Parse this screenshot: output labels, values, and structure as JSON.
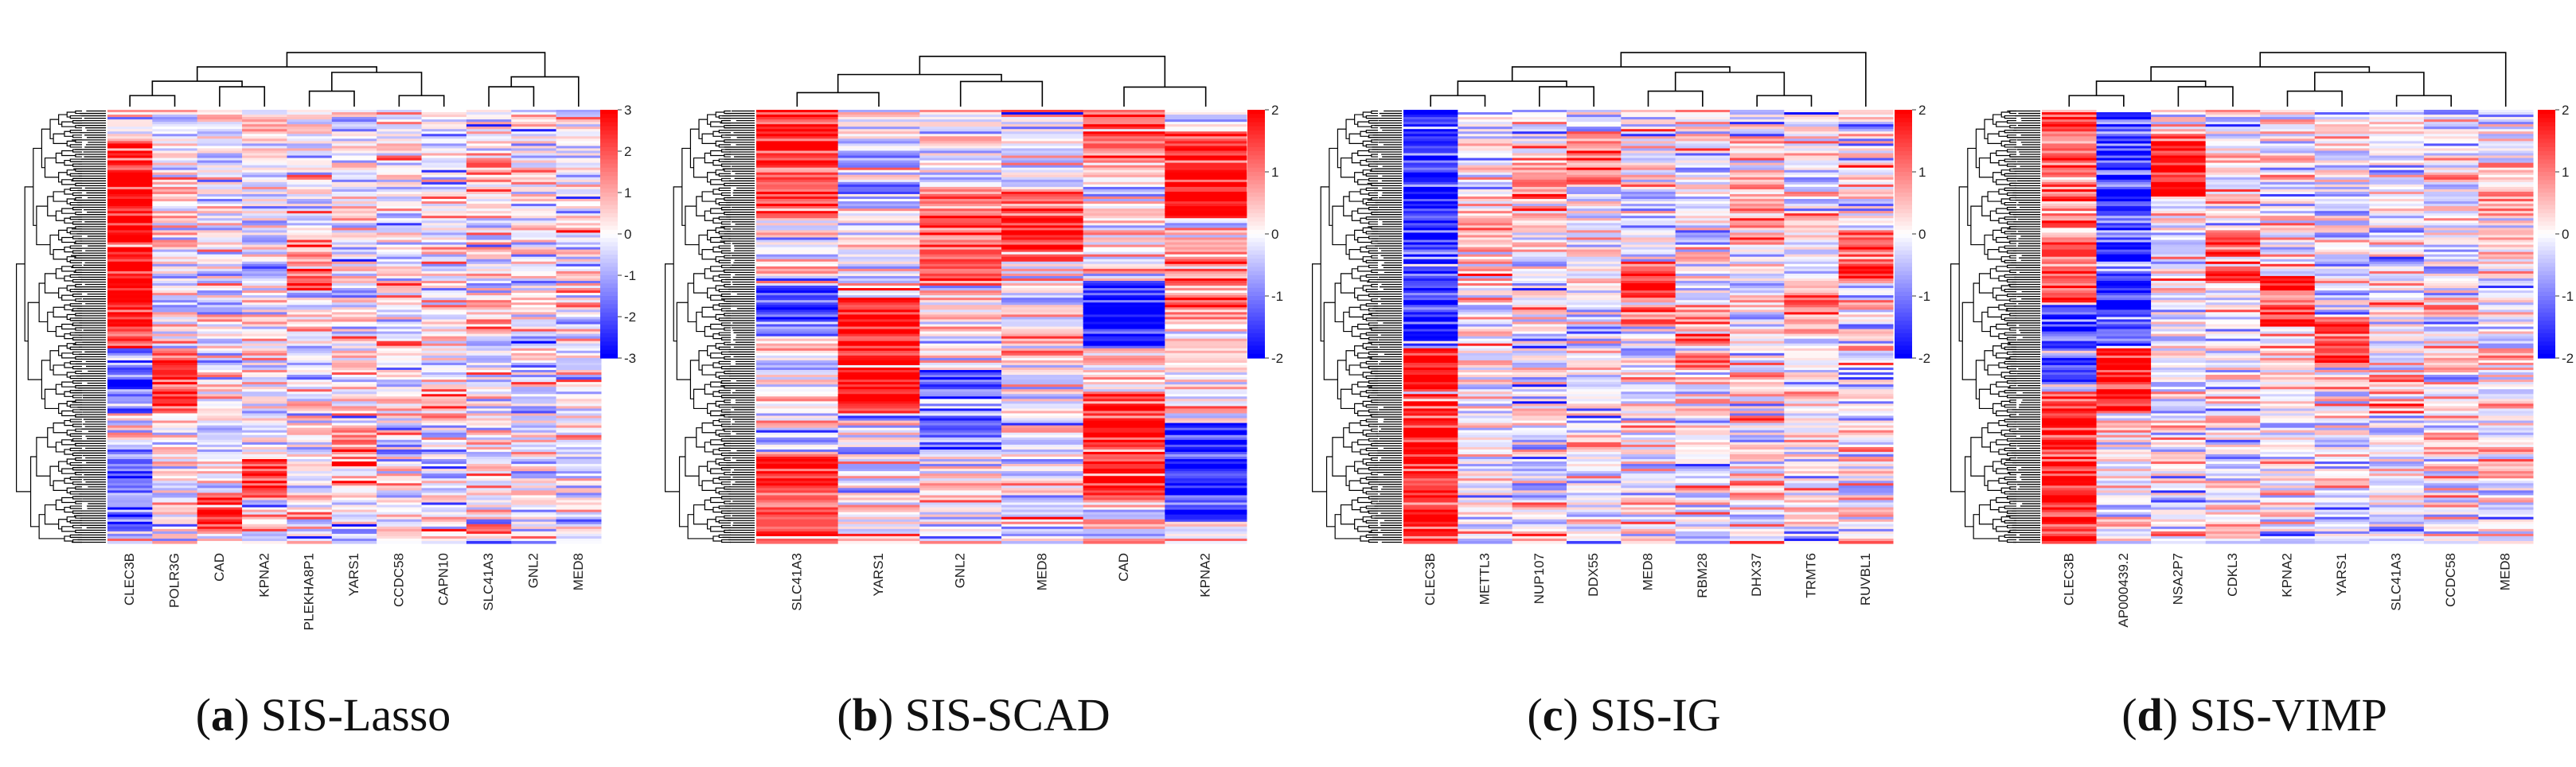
{
  "figure": {
    "type": "heatmap",
    "colors": {
      "low": "#0000ff",
      "mid": "#ffffff",
      "high": "#ff0000",
      "dendrogram": "#000000"
    }
  },
  "chart_data": [
    {
      "type": "heatmap",
      "panel": "(a)",
      "label_letter": "a",
      "method": "SIS-Lasso",
      "columns": [
        "CLEC3B",
        "POLR3G",
        "CAD",
        "KPNA2",
        "PLEKHA8P1",
        "YARS1",
        "CCDC58",
        "CAPN10",
        "SLC41A3",
        "GNL2",
        "MED8"
      ],
      "colorbar": {
        "min": -3,
        "max": 3,
        "ticks": [
          "3",
          "2",
          "1",
          "0",
          "-1",
          "-2",
          "-3"
        ]
      },
      "column_dendrogram": true,
      "row_dendrogram": true
    },
    {
      "type": "heatmap",
      "panel": "(b)",
      "label_letter": "b",
      "method": "SIS-SCAD",
      "columns": [
        "SLC41A3",
        "YARS1",
        "GNL2",
        "MED8",
        "CAD",
        "KPNA2"
      ],
      "colorbar": {
        "min": -2,
        "max": 2,
        "ticks": [
          "2",
          "1",
          "0",
          "-1",
          "-2"
        ]
      },
      "column_dendrogram": true,
      "row_dendrogram": true
    },
    {
      "type": "heatmap",
      "panel": "(c)",
      "label_letter": "c",
      "method": "SIS-IG",
      "columns": [
        "CLEC3B",
        "METTL3",
        "NUP107",
        "DDX55",
        "MED8",
        "RBM28",
        "DHX37",
        "TRMT6",
        "RUVBL1"
      ],
      "colorbar": {
        "min": -2,
        "max": 2,
        "ticks": [
          "2",
          "1",
          "0",
          "-1",
          "-2"
        ]
      },
      "column_dendrogram": true,
      "row_dendrogram": true
    },
    {
      "type": "heatmap",
      "panel": "(d)",
      "label_letter": "d",
      "method": "SIS-VIMP",
      "columns": [
        "CLEC3B",
        "AP000439.2",
        "NSA2P7",
        "CDKL3",
        "KPNA2",
        "YARS1",
        "SLC41A3",
        "CCDC58",
        "MED8"
      ],
      "colorbar": {
        "min": -2,
        "max": 2,
        "ticks": [
          "2",
          "1",
          "0",
          "-1",
          "-2"
        ]
      },
      "column_dendrogram": true,
      "row_dendrogram": true
    }
  ]
}
